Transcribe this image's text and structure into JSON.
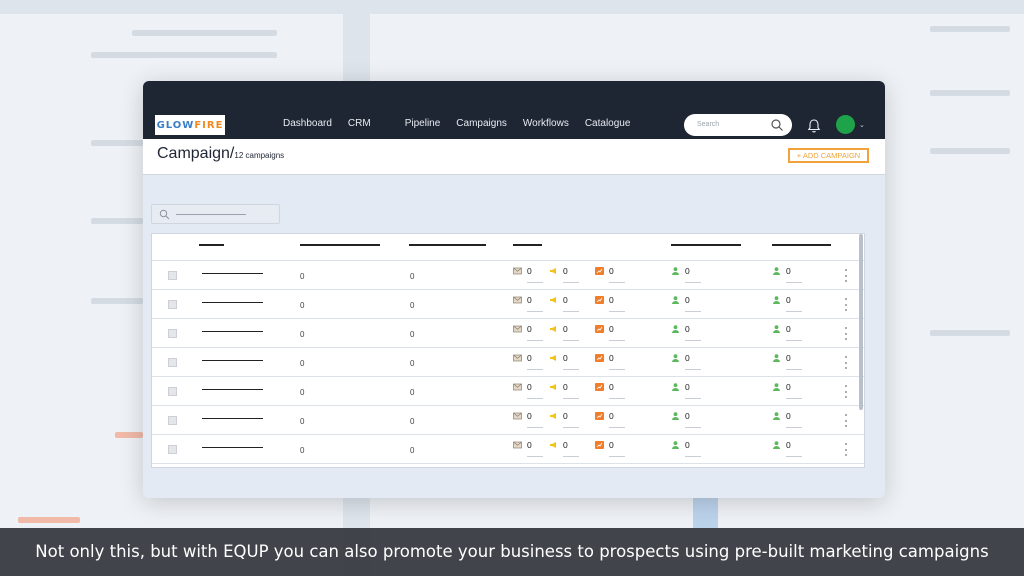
{
  "app": {
    "logo_text": "GLOWFIRE",
    "logo_main": "GLOW",
    "logo_accent": "FIRE"
  },
  "nav": {
    "items": [
      "Dashboard",
      "CRM",
      "Pipeline",
      "Campaigns",
      "Workflows",
      "Catalogue"
    ],
    "search_placeholder": "Search",
    "icons": {
      "search": "search-icon",
      "notifications": "bell-icon",
      "user": "avatar",
      "menu": "chevron-down-icon"
    },
    "avatar_color": "#1ea34a"
  },
  "page": {
    "title": "Campaign/",
    "count": "12 campaigns",
    "add_button": "+ ADD CAMPAIGN"
  },
  "table": {
    "rows": [
      {
        "col1": "0",
        "col2": "0",
        "email": "0",
        "sms": "0",
        "social": "0",
        "contacts": "0",
        "leads": "0"
      },
      {
        "col1": "0",
        "col2": "0",
        "email": "0",
        "sms": "0",
        "social": "0",
        "contacts": "0",
        "leads": "0"
      },
      {
        "col1": "0",
        "col2": "0",
        "email": "0",
        "sms": "0",
        "social": "0",
        "contacts": "0",
        "leads": "0"
      },
      {
        "col1": "0",
        "col2": "0",
        "email": "0",
        "sms": "0",
        "social": "0",
        "contacts": "0",
        "leads": "0"
      },
      {
        "col1": "0",
        "col2": "0",
        "email": "0",
        "sms": "0",
        "social": "0",
        "contacts": "0",
        "leads": "0"
      },
      {
        "col1": "0",
        "col2": "0",
        "email": "0",
        "sms": "0",
        "social": "0",
        "contacts": "0",
        "leads": "0"
      },
      {
        "col1": "0",
        "col2": "0",
        "email": "0",
        "sms": "0",
        "social": "0",
        "contacts": "0",
        "leads": "0"
      }
    ]
  },
  "colors": {
    "nav_bg": "#1f2633",
    "accent": "#f0a33a",
    "contact_icon": "#5cb85c",
    "sms_icon": "#f2c419",
    "social_icon": "#f07d2a"
  },
  "caption": "Not only this, but with EQUP you can also promote your business to prospects using pre-built marketing campaigns"
}
